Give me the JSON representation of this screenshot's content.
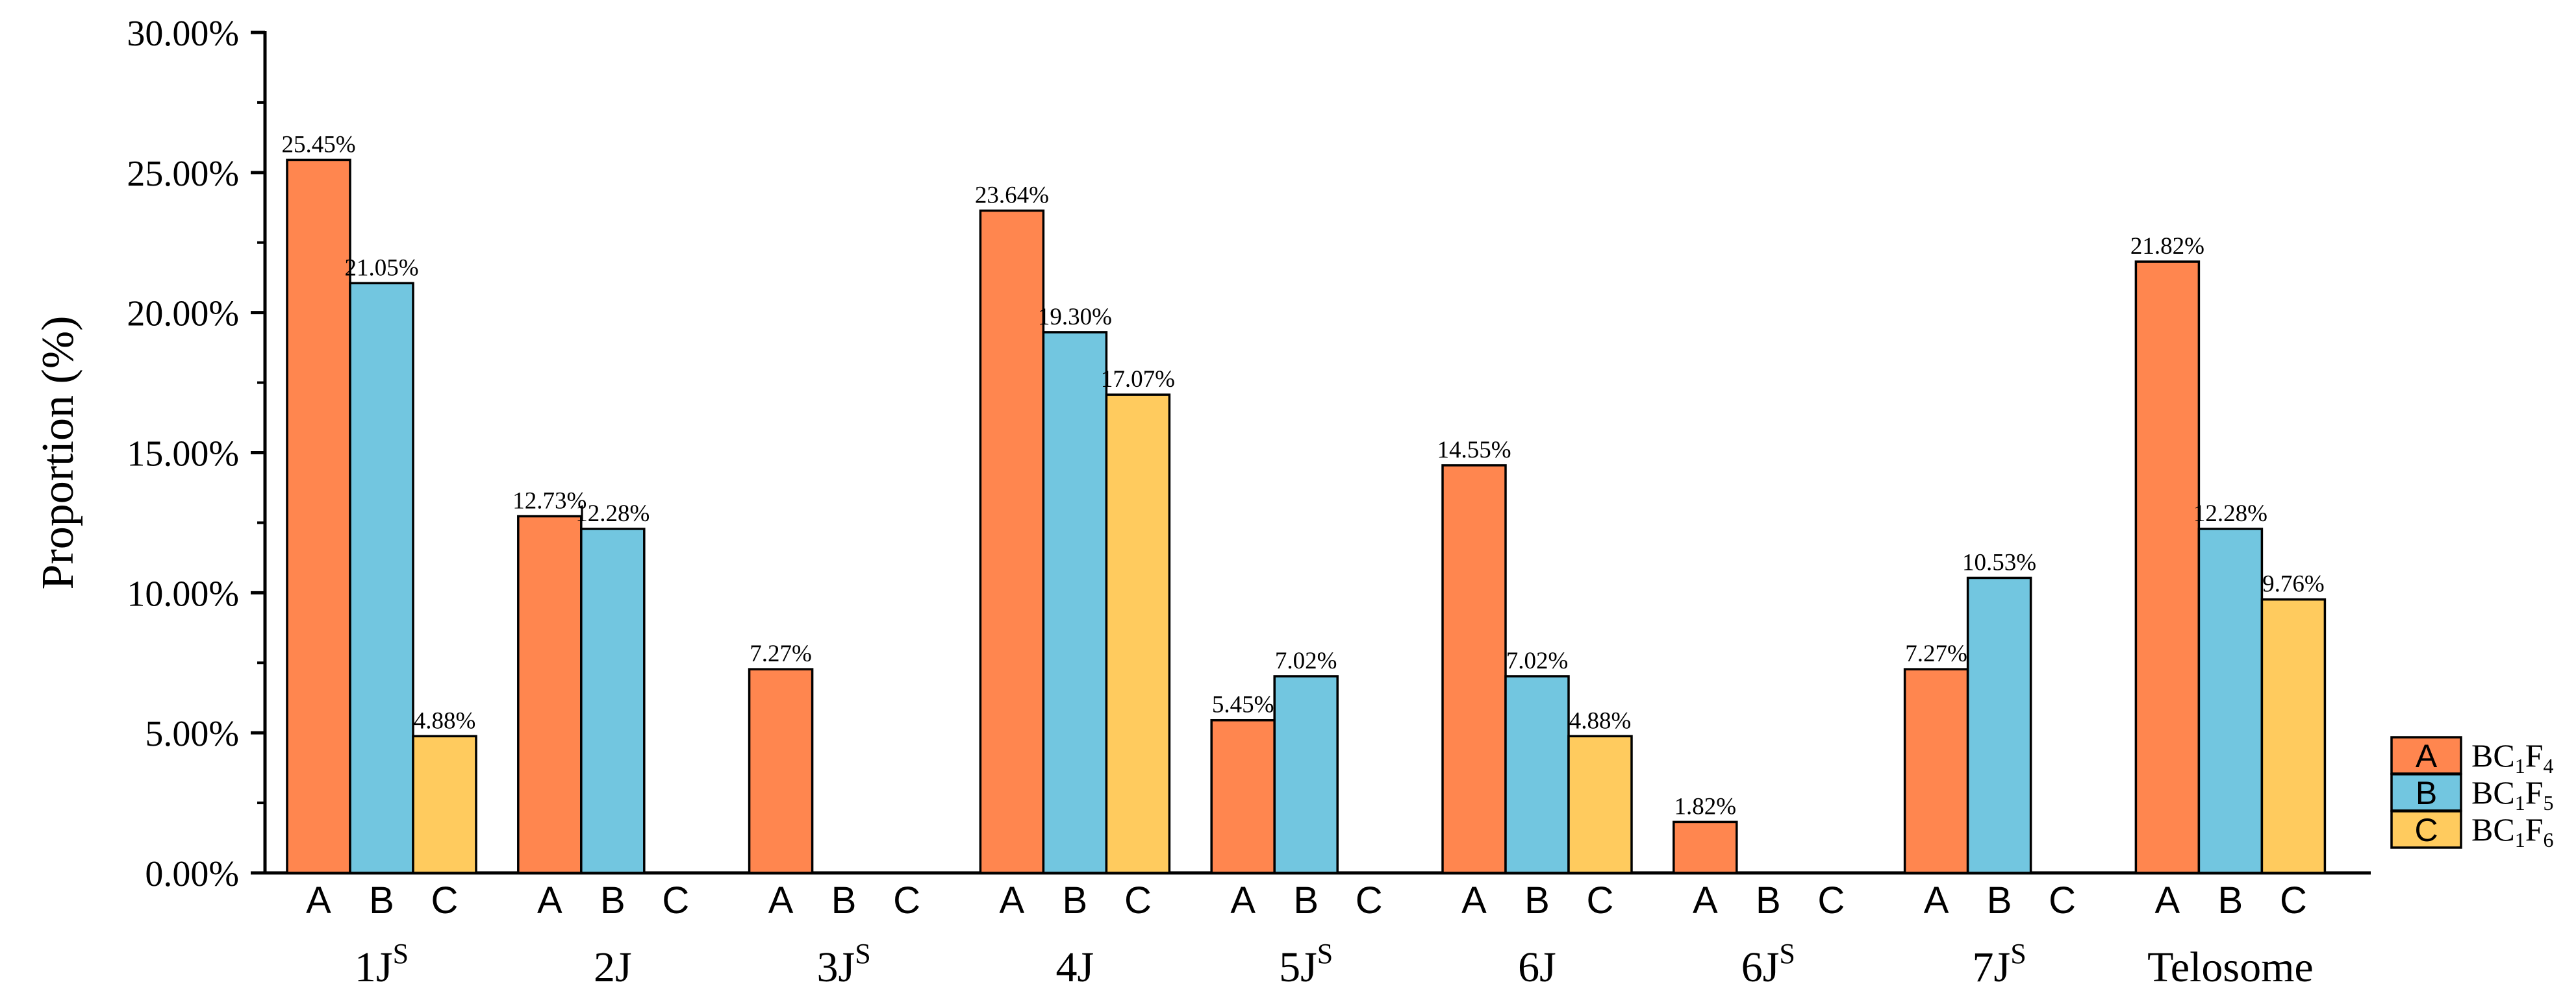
{
  "chart_data": {
    "type": "bar",
    "ylabel": "Proportion (%)",
    "ylim": [
      0,
      30
    ],
    "yticks": [
      "0.00%",
      "5.00%",
      "10.00%",
      "15.00%",
      "20.00%",
      "25.00%",
      "30.00%"
    ],
    "group_labels": [
      {
        "base": "1J",
        "sup": "S"
      },
      {
        "base": "2J",
        "sup": ""
      },
      {
        "base": "3J",
        "sup": "S"
      },
      {
        "base": "4J",
        "sup": ""
      },
      {
        "base": "5J",
        "sup": "S"
      },
      {
        "base": "6J",
        "sup": ""
      },
      {
        "base": "6J",
        "sup": "S"
      },
      {
        "base": "7J",
        "sup": "S"
      },
      {
        "base": "Telosome",
        "sup": ""
      }
    ],
    "bar_letters": [
      "A",
      "B",
      "C"
    ],
    "series": [
      {
        "name": "BC1F4",
        "letter": "A",
        "legend_sub": [
          "BC",
          "1",
          "F",
          "4"
        ],
        "color": "#FF864F",
        "values": [
          25.45,
          12.73,
          7.27,
          23.64,
          5.45,
          14.55,
          1.82,
          7.27,
          21.82
        ],
        "labels": [
          "25.45%",
          "12.73%",
          "7.27%",
          "23.64%",
          "5.45%",
          "14.55%",
          "1.82%",
          "7.27%",
          "21.82%"
        ]
      },
      {
        "name": "BC1F5",
        "letter": "B",
        "legend_sub": [
          "BC",
          "1",
          "F",
          "5"
        ],
        "color": "#72C6E0",
        "values": [
          21.05,
          12.28,
          0,
          19.3,
          7.02,
          7.02,
          0,
          10.53,
          12.28
        ],
        "labels": [
          "21.05%",
          "12.28%",
          "",
          "19.30%",
          "7.02%",
          "7.02%",
          "",
          "10.53%",
          "12.28%"
        ]
      },
      {
        "name": "BC1F6",
        "letter": "C",
        "legend_sub": [
          "BC",
          "1",
          "F",
          "6"
        ],
        "color": "#FFCB5E",
        "values": [
          4.88,
          0,
          0,
          17.07,
          0,
          4.88,
          0,
          0,
          9.76
        ],
        "labels": [
          "4.88%",
          "",
          "",
          "17.07%",
          "",
          "4.88%",
          "",
          "",
          "9.76%"
        ]
      }
    ],
    "legend_position": "right",
    "grid": false
  }
}
